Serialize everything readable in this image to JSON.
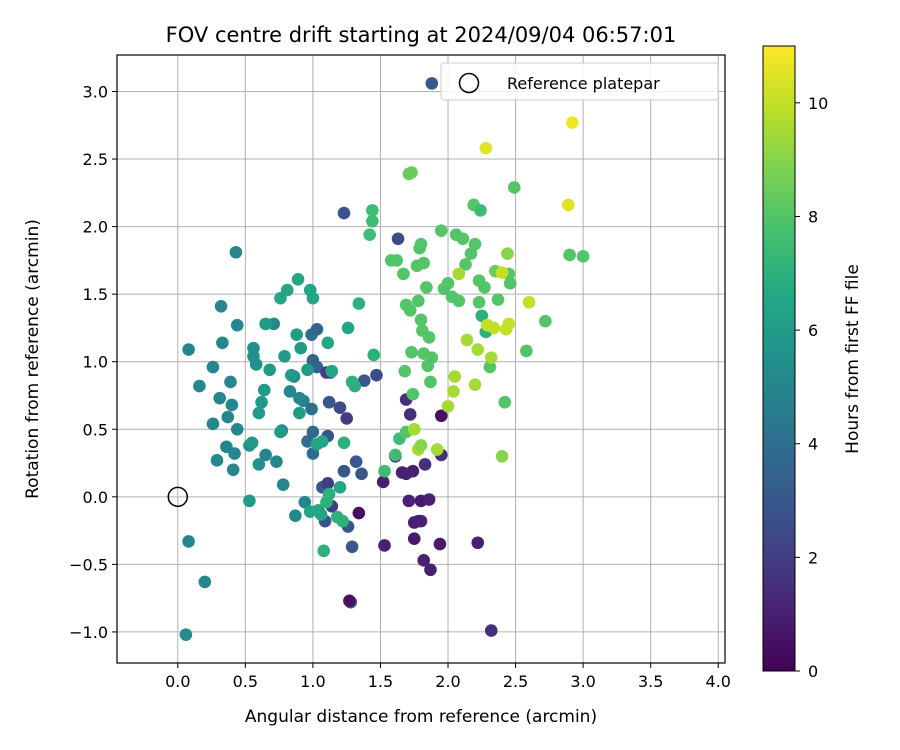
{
  "chart_data": {
    "type": "scatter",
    "title": "FOV centre drift starting at 2024/09/04 06:57:01",
    "xlabel": "Angular distance from reference (arcmin)",
    "ylabel": "Rotation from reference (arcmin)",
    "xlim": [
      -0.45,
      4.05
    ],
    "ylim": [
      -1.23,
      3.27
    ],
    "xticks": [
      0.0,
      0.5,
      1.0,
      1.5,
      2.0,
      2.5,
      3.0,
      3.5,
      4.0
    ],
    "xtick_labels": [
      "0.0",
      "0.5",
      "1.0",
      "1.5",
      "2.0",
      "2.5",
      "3.0",
      "3.5",
      "4.0"
    ],
    "yticks": [
      -1.0,
      -0.5,
      0.0,
      0.5,
      1.0,
      1.5,
      2.0,
      2.5,
      3.0
    ],
    "ytick_labels": [
      "−1.0",
      "−0.5",
      "0.0",
      "0.5",
      "1.0",
      "1.5",
      "2.0",
      "2.5",
      "3.0"
    ],
    "grid": true,
    "legend": {
      "placement": "top-right",
      "entries": [
        "Reference platepar"
      ]
    },
    "reference_point": {
      "x": 0.0,
      "y": 0.0
    },
    "colorbar": {
      "label": "Hours from first FF file",
      "range": [
        0,
        11
      ],
      "ticks": [
        0,
        2,
        4,
        6,
        8,
        10
      ],
      "tick_labels": [
        "0",
        "2",
        "4",
        "6",
        "8",
        "10"
      ],
      "colormap": "viridis"
    },
    "points_format": [
      "x",
      "y",
      "hours"
    ],
    "points": [
      [
        0.06,
        -1.02,
        5.2
      ],
      [
        0.08,
        -0.33,
        5.0
      ],
      [
        0.2,
        -0.63,
        5.0
      ],
      [
        0.08,
        1.09,
        5.0
      ],
      [
        0.16,
        0.82,
        5.0
      ],
      [
        0.26,
        0.96,
        5.0
      ],
      [
        0.32,
        1.41,
        5.0
      ],
      [
        0.33,
        1.14,
        5.0
      ],
      [
        0.43,
        1.81,
        5.0
      ],
      [
        0.44,
        1.27,
        5.0
      ],
      [
        0.26,
        0.54,
        5.0
      ],
      [
        0.31,
        0.73,
        5.0
      ],
      [
        0.29,
        0.27,
        5.0
      ],
      [
        0.36,
        0.37,
        5.0
      ],
      [
        0.39,
        0.85,
        5.0
      ],
      [
        0.41,
        0.2,
        5.0
      ],
      [
        0.42,
        0.32,
        5.0
      ],
      [
        0.44,
        0.5,
        5.0
      ],
      [
        0.37,
        0.59,
        5.0
      ],
      [
        0.4,
        0.68,
        5.0
      ],
      [
        0.53,
        0.38,
        5.5
      ],
      [
        0.56,
        1.04,
        5.5
      ],
      [
        0.56,
        1.1,
        5.5
      ],
      [
        0.58,
        0.98,
        5.5
      ],
      [
        0.6,
        0.24,
        5.5
      ],
      [
        0.65,
        0.31,
        5.0
      ],
      [
        0.71,
        1.28,
        5.0
      ],
      [
        0.73,
        0.26,
        5.0
      ],
      [
        0.77,
        0.49,
        5.0
      ],
      [
        0.78,
        0.09,
        5.0
      ],
      [
        0.83,
        0.78,
        5.0
      ],
      [
        0.86,
        0.89,
        5.0
      ],
      [
        0.87,
        -0.14,
        5.0
      ],
      [
        0.9,
        0.73,
        5.0
      ],
      [
        0.93,
        0.71,
        5.0
      ],
      [
        0.94,
        -0.04,
        5.0
      ],
      [
        0.96,
        0.41,
        4.0
      ],
      [
        1.0,
        0.32,
        4.0
      ],
      [
        1.0,
        0.48,
        3.8
      ],
      [
        0.99,
        0.65,
        4.0
      ],
      [
        1.0,
        1.01,
        3.5
      ],
      [
        0.99,
        1.2,
        4.0
      ],
      [
        1.03,
        1.24,
        3.5
      ],
      [
        1.03,
        0.96,
        3.5
      ],
      [
        1.07,
        0.07,
        3.0
      ],
      [
        1.09,
        -0.18,
        2.8
      ],
      [
        1.11,
        0.45,
        3.0
      ],
      [
        1.12,
        0.7,
        3.0
      ],
      [
        1.13,
        0.92,
        3.0
      ],
      [
        1.23,
        2.1,
        2.8
      ],
      [
        1.23,
        0.19,
        3.0
      ],
      [
        1.26,
        -0.22,
        3.0
      ],
      [
        1.29,
        -0.37,
        3.0
      ],
      [
        1.32,
        0.26,
        3.0
      ],
      [
        1.28,
        -0.78,
        3.0
      ],
      [
        1.36,
        0.17,
        3.0
      ],
      [
        1.38,
        0.86,
        3.0
      ],
      [
        1.47,
        0.9,
        2.5
      ],
      [
        1.63,
        1.91,
        2.5
      ],
      [
        1.88,
        3.06,
        3.0
      ],
      [
        1.1,
        0.92,
        2.0
      ],
      [
        1.11,
        0.1,
        2.0
      ],
      [
        1.14,
        -0.07,
        2.0
      ],
      [
        1.2,
        0.66,
        2.5
      ],
      [
        1.25,
        0.58,
        2.0
      ],
      [
        1.52,
        0.11,
        1.0
      ],
      [
        1.53,
        -0.36,
        1.0
      ],
      [
        1.61,
        0.3,
        1.5
      ],
      [
        1.66,
        0.18,
        1.0
      ],
      [
        1.69,
        0.72,
        1.5
      ],
      [
        1.69,
        0.17,
        1.0
      ],
      [
        1.71,
        -0.03,
        1.0
      ],
      [
        1.72,
        0.61,
        1.5
      ],
      [
        1.74,
        0.19,
        1.0
      ],
      [
        1.75,
        -0.19,
        1.0
      ],
      [
        1.75,
        -0.31,
        0.8
      ],
      [
        1.78,
        -0.18,
        1.0
      ],
      [
        1.8,
        -0.03,
        0.8
      ],
      [
        1.82,
        -0.47,
        1.0
      ],
      [
        1.83,
        0.24,
        1.5
      ],
      [
        1.86,
        -0.02,
        1.0
      ],
      [
        1.87,
        -0.54,
        1.0
      ],
      [
        1.94,
        -0.35,
        0.8
      ],
      [
        1.95,
        0.31,
        1.5
      ],
      [
        1.95,
        0.6,
        0.5
      ],
      [
        2.22,
        -0.34,
        1.0
      ],
      [
        2.32,
        -0.99,
        1.5
      ],
      [
        1.8,
        -0.18,
        1.0
      ],
      [
        1.27,
        -0.77,
        0.5
      ],
      [
        1.34,
        -0.12,
        0.5
      ],
      [
        0.53,
        -0.03,
        6.0
      ],
      [
        0.55,
        0.4,
        6.0
      ],
      [
        0.6,
        0.62,
        6.0
      ],
      [
        0.62,
        0.7,
        6.0
      ],
      [
        0.64,
        0.79,
        6.0
      ],
      [
        0.65,
        1.28,
        6.0
      ],
      [
        0.68,
        0.94,
        6.0
      ],
      [
        0.76,
        0.48,
        6.0
      ],
      [
        0.76,
        1.47,
        6.5
      ],
      [
        0.79,
        1.04,
        6.0
      ],
      [
        0.81,
        1.53,
        6.5
      ],
      [
        0.84,
        0.9,
        6.0
      ],
      [
        0.88,
        1.2,
        6.0
      ],
      [
        0.89,
        1.61,
        6.5
      ],
      [
        0.9,
        0.62,
        6.0
      ],
      [
        0.91,
        1.1,
        6.0
      ],
      [
        0.96,
        0.94,
        6.0
      ],
      [
        0.98,
        -0.11,
        6.5
      ],
      [
        0.98,
        1.53,
        6.5
      ],
      [
        1.0,
        1.47,
        6.5
      ],
      [
        1.03,
        0.39,
        6.5
      ],
      [
        1.04,
        -0.1,
        6.5
      ],
      [
        1.06,
        -0.13,
        6.5
      ],
      [
        1.07,
        0.41,
        6.5
      ],
      [
        1.08,
        -0.4,
        7.0
      ],
      [
        1.1,
        -0.04,
        7.0
      ],
      [
        1.11,
        1.14,
        6.5
      ],
      [
        1.12,
        0.02,
        7.0
      ],
      [
        1.14,
        0.93,
        6.5
      ],
      [
        1.18,
        -0.15,
        7.0
      ],
      [
        1.2,
        0.07,
        6.5
      ],
      [
        1.22,
        -0.18,
        7.0
      ],
      [
        1.23,
        0.4,
        7.0
      ],
      [
        1.26,
        1.25,
        6.5
      ],
      [
        1.29,
        0.85,
        7.0
      ],
      [
        1.31,
        0.82,
        7.0
      ],
      [
        1.34,
        1.43,
        7.0
      ],
      [
        1.42,
        1.94,
        7.5
      ],
      [
        1.44,
        2.12,
        7.5
      ],
      [
        1.44,
        2.04,
        7.5
      ],
      [
        1.45,
        1.05,
        7.0
      ],
      [
        1.53,
        0.19,
        7.5
      ],
      [
        1.58,
        1.75,
        8.0
      ],
      [
        1.61,
        0.31,
        7.5
      ],
      [
        1.62,
        1.75,
        8.0
      ],
      [
        1.64,
        0.43,
        7.5
      ],
      [
        1.67,
        1.65,
        8.0
      ],
      [
        1.68,
        0.93,
        8.0
      ],
      [
        1.69,
        0.48,
        8.0
      ],
      [
        1.69,
        1.42,
        8.0
      ],
      [
        1.71,
        2.39,
        8.5
      ],
      [
        1.72,
        1.38,
        8.0
      ],
      [
        1.73,
        2.4,
        8.5
      ],
      [
        1.73,
        1.07,
        8.0
      ],
      [
        1.74,
        0.76,
        8.0
      ],
      [
        1.77,
        1.71,
        8.0
      ],
      [
        1.78,
        1.45,
        8.0
      ],
      [
        1.79,
        1.84,
        8.0
      ],
      [
        1.8,
        1.31,
        8.0
      ],
      [
        1.8,
        1.87,
        8.0
      ],
      [
        1.81,
        1.23,
        8.0
      ],
      [
        1.82,
        1.73,
        8.0
      ],
      [
        1.82,
        1.06,
        8.0
      ],
      [
        1.84,
        1.55,
        8.0
      ],
      [
        1.85,
        0.97,
        8.0
      ],
      [
        1.86,
        1.18,
        8.0
      ],
      [
        1.87,
        0.85,
        8.0
      ],
      [
        1.88,
        1.03,
        8.0
      ],
      [
        1.95,
        1.97,
        8.0
      ],
      [
        1.97,
        1.54,
        8.0
      ],
      [
        2.0,
        1.58,
        8.0
      ],
      [
        2.03,
        1.48,
        8.0
      ],
      [
        2.06,
        1.94,
        8.0
      ],
      [
        2.08,
        1.45,
        8.0
      ],
      [
        2.11,
        1.91,
        8.0
      ],
      [
        2.13,
        1.72,
        8.0
      ],
      [
        2.17,
        1.8,
        8.0
      ],
      [
        2.19,
        2.16,
        8.0
      ],
      [
        2.2,
        1.87,
        8.0
      ],
      [
        2.23,
        1.6,
        8.0
      ],
      [
        2.23,
        1.44,
        8.0
      ],
      [
        2.24,
        2.12,
        7.5
      ],
      [
        2.25,
        1.34,
        7.0
      ],
      [
        2.27,
        1.55,
        8.0
      ],
      [
        2.28,
        1.22,
        7.0
      ],
      [
        2.31,
        0.96,
        8.0
      ],
      [
        2.35,
        1.67,
        8.5
      ],
      [
        2.37,
        1.46,
        8.0
      ],
      [
        2.4,
        0.3,
        9.0
      ],
      [
        2.42,
        0.7,
        8.0
      ],
      [
        2.44,
        1.8,
        9.0
      ],
      [
        2.45,
        1.65,
        8.0
      ],
      [
        2.46,
        1.58,
        8.0
      ],
      [
        2.49,
        2.29,
        8.0
      ],
      [
        2.58,
        1.08,
        8.0
      ],
      [
        2.72,
        1.3,
        8.0
      ],
      [
        2.9,
        1.79,
        8.0
      ],
      [
        3.0,
        1.78,
        8.0
      ],
      [
        1.78,
        0.35,
        9.5
      ],
      [
        1.8,
        0.38,
        9.0
      ],
      [
        1.75,
        0.5,
        9.5
      ],
      [
        1.92,
        0.35,
        9.5
      ],
      [
        2.0,
        0.67,
        9.5
      ],
      [
        2.04,
        0.78,
        9.5
      ],
      [
        2.05,
        0.89,
        9.5
      ],
      [
        2.08,
        1.65,
        9.5
      ],
      [
        2.14,
        1.16,
        9.5
      ],
      [
        2.2,
        0.83,
        9.5
      ],
      [
        2.22,
        1.09,
        9.5
      ],
      [
        2.29,
        1.27,
        10.0
      ],
      [
        2.32,
        1.03,
        9.5
      ],
      [
        2.34,
        1.25,
        10.0
      ],
      [
        2.4,
        1.66,
        10.0
      ],
      [
        2.43,
        1.24,
        10.0
      ],
      [
        2.45,
        1.28,
        10.0
      ],
      [
        2.6,
        1.44,
        10.0
      ],
      [
        2.28,
        2.58,
        10.5
      ],
      [
        2.89,
        2.16,
        10.5
      ],
      [
        2.92,
        2.77,
        10.8
      ]
    ]
  }
}
